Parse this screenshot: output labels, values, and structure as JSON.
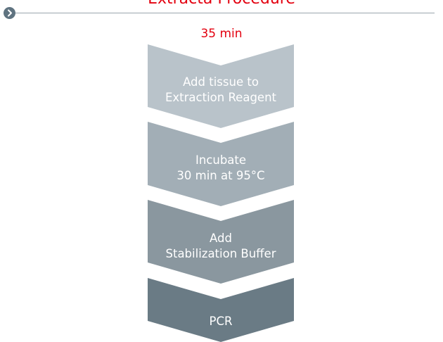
{
  "header": {
    "title": "Extracta Procedure",
    "bullet_icon": "chevron-right-icon"
  },
  "total_time": "35 min",
  "steps": [
    {
      "line1": "Add tissue to",
      "line2": "Extraction Reagent",
      "color": "#b9c3ca"
    },
    {
      "line1": "Incubate",
      "line2": "30 min at 95°C",
      "color": "#a2aeb6"
    },
    {
      "line1": "Add",
      "line2": "Stabilization Buffer",
      "color": "#8a979f"
    },
    {
      "line1": "PCR",
      "line2": "",
      "color": "#6a7b85"
    }
  ]
}
